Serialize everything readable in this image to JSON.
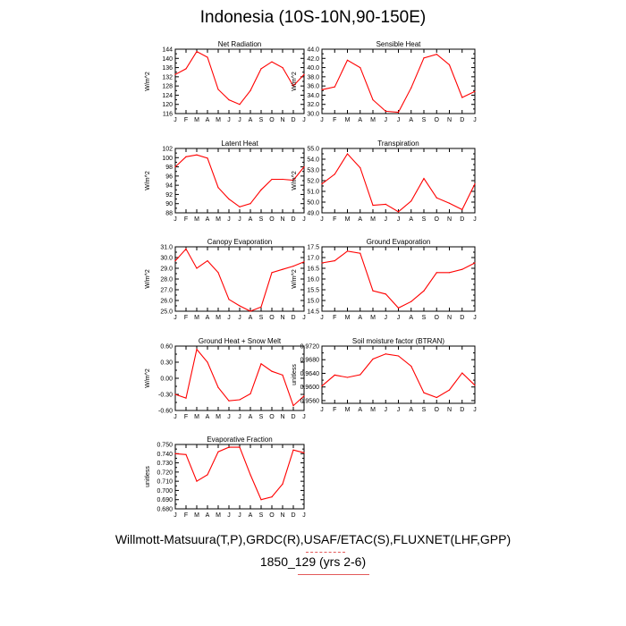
{
  "page": {
    "title": "Indonesia (10S-10N,90-150E)",
    "footer_line1": "Willmott-Matsuura(T,P),GRDC(R),USAF/ETAC(S),FLUXNET(LHF,GPP)",
    "footer_line2": "1850_129 (yrs 2-6)"
  },
  "colors": {
    "series": "#ff0000",
    "axis": "#000000"
  },
  "chart_data": [
    {
      "type": "line",
      "title": "Net Radiation",
      "ylabel": "W/m^2",
      "x": [
        "J",
        "F",
        "M",
        "A",
        "M",
        "J",
        "J",
        "A",
        "S",
        "O",
        "N",
        "D",
        "J"
      ],
      "ylim": [
        116,
        144
      ],
      "yticks": [
        "116",
        "120",
        "124",
        "128",
        "132",
        "136",
        "140",
        "144"
      ],
      "values": [
        133,
        135.5,
        143,
        140.5,
        126.5,
        122,
        120,
        126,
        135.5,
        138.5,
        136,
        128,
        133
      ]
    },
    {
      "type": "line",
      "title": "Sensible Heat",
      "ylabel": "W/m^2",
      "x": [
        "J",
        "F",
        "M",
        "A",
        "M",
        "J",
        "J",
        "A",
        "S",
        "O",
        "N",
        "D",
        "J"
      ],
      "ylim": [
        30,
        44
      ],
      "yticks": [
        "30.0",
        "32.0",
        "34.0",
        "36.0",
        "38.0",
        "40.0",
        "42.0",
        "44.0"
      ],
      "values": [
        35.2,
        35.8,
        41.6,
        40,
        33,
        30.5,
        30.3,
        35.6,
        42.1,
        42.9,
        40.6,
        33.5,
        34.8
      ]
    },
    {
      "type": "line",
      "title": "Latent Heat",
      "ylabel": "W/m^2",
      "x": [
        "J",
        "F",
        "M",
        "A",
        "M",
        "J",
        "J",
        "A",
        "S",
        "O",
        "N",
        "D",
        "J"
      ],
      "ylim": [
        88,
        102
      ],
      "yticks": [
        "88",
        "90",
        "92",
        "94",
        "96",
        "98",
        "100",
        "102"
      ],
      "values": [
        98,
        100.2,
        100.6,
        99.9,
        93.5,
        91,
        89.3,
        90,
        93,
        95.3,
        95.3,
        95.1,
        98
      ]
    },
    {
      "type": "line",
      "title": "Transpiration",
      "ylabel": "W/m^2",
      "x": [
        "J",
        "F",
        "M",
        "A",
        "M",
        "J",
        "J",
        "A",
        "S",
        "O",
        "N",
        "D",
        "J"
      ],
      "ylim": [
        49,
        55
      ],
      "yticks": [
        "49.0",
        "50.0",
        "51.0",
        "52.0",
        "53.0",
        "54.0",
        "55.0"
      ],
      "values": [
        51.7,
        52.6,
        54.5,
        53.2,
        49.7,
        49.8,
        49.1,
        50.1,
        52.2,
        50.4,
        49.9,
        49.3,
        51.7
      ]
    },
    {
      "type": "line",
      "title": "Canopy Evaporation",
      "ylabel": "W/m^2",
      "x": [
        "J",
        "F",
        "M",
        "A",
        "M",
        "J",
        "J",
        "A",
        "S",
        "O",
        "N",
        "D",
        "J"
      ],
      "ylim": [
        25,
        31
      ],
      "yticks": [
        "25.0",
        "26.0",
        "27.0",
        "28.0",
        "29.0",
        "30.0",
        "31.0"
      ],
      "values": [
        29.7,
        30.8,
        29,
        29.7,
        28.6,
        26.1,
        25.5,
        25,
        25.4,
        28.6,
        28.9,
        29.2,
        29.6
      ]
    },
    {
      "type": "line",
      "title": "Ground Evaporation",
      "ylabel": "W/m^2",
      "x": [
        "J",
        "F",
        "M",
        "A",
        "M",
        "J",
        "J",
        "A",
        "S",
        "O",
        "N",
        "D",
        "J"
      ],
      "ylim": [
        14.5,
        17.5
      ],
      "yticks": [
        "14.5",
        "15.0",
        "15.5",
        "16.0",
        "16.5",
        "17.0",
        "17.5"
      ],
      "values": [
        16.75,
        16.85,
        17.3,
        17.2,
        15.45,
        15.3,
        14.65,
        14.95,
        15.45,
        16.3,
        16.3,
        16.45,
        16.75
      ]
    },
    {
      "type": "line",
      "title": "Ground Heat + Snow Melt",
      "ylabel": "W/m^2",
      "x": [
        "J",
        "F",
        "M",
        "A",
        "M",
        "J",
        "J",
        "A",
        "S",
        "O",
        "N",
        "D",
        "J"
      ],
      "ylim": [
        -0.6,
        0.6
      ],
      "yticks": [
        "-0.60",
        "-0.30",
        "0.00",
        "0.30",
        "0.60"
      ],
      "values": [
        -0.3,
        -0.37,
        0.54,
        0.3,
        -0.17,
        -0.42,
        -0.4,
        -0.29,
        0.27,
        0.13,
        0.06,
        -0.51,
        -0.33
      ]
    },
    {
      "type": "line",
      "title": "Soil moisture factor (BTRAN)",
      "ylabel": "unitless",
      "x": [
        "J",
        "F",
        "M",
        "A",
        "M",
        "J",
        "J",
        "A",
        "S",
        "O",
        "N",
        "D",
        "J"
      ],
      "ylim": [
        0.9552,
        0.972
      ],
      "yticks": [
        "0.9560",
        "0.9600",
        "0.9640",
        "0.9680",
        "0.9720"
      ],
      "values": [
        0.9603,
        0.9635,
        0.9628,
        0.9636,
        0.9682,
        0.9697,
        0.9691,
        0.9661,
        0.9583,
        0.9569,
        0.9591,
        0.9641,
        0.9605
      ]
    },
    {
      "type": "line",
      "title": "Evaporative Fraction",
      "ylabel": "unitless",
      "x": [
        "J",
        "F",
        "M",
        "A",
        "M",
        "J",
        "J",
        "A",
        "S",
        "O",
        "N",
        "D",
        "J"
      ],
      "ylim": [
        0.68,
        0.75
      ],
      "yticks": [
        "0.680",
        "0.690",
        "0.700",
        "0.710",
        "0.720",
        "0.730",
        "0.740",
        "0.750"
      ],
      "values": [
        0.74,
        0.739,
        0.71,
        0.717,
        0.742,
        0.747,
        0.747,
        0.717,
        0.69,
        0.693,
        0.707,
        0.744,
        0.741
      ]
    }
  ]
}
